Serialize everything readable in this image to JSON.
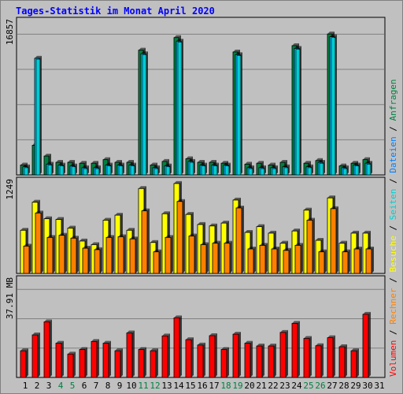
{
  "title": "Tages-Statistik im Monat April 2020",
  "colors": {
    "background": "#c0c0c0",
    "panel": "#c0c0c0",
    "grid": "#808080",
    "title": "#0000ff",
    "anfragen": "#008040",
    "dateien": "#00c0ff",
    "seiten": "#00d0d0",
    "besuche": "#ffff00",
    "rechner": "#ff8000",
    "volumen": "#ff0000",
    "day_normal": "#000000",
    "day_weekend": "#008040"
  },
  "side_label": [
    {
      "text": "Volumen",
      "color": "#ff0000"
    },
    {
      "text": "Rechner",
      "color": "#ff8000"
    },
    {
      "text": "Besuche",
      "color": "#ffff00"
    },
    {
      "text": "Seiten",
      "color": "#00d0d0"
    },
    {
      "text": "Dateien",
      "color": "#0080ff"
    },
    {
      "text": "Anfragen",
      "color": "#008040"
    }
  ],
  "separator": " / ",
  "chart_data": [
    {
      "type": "bar",
      "panel": "top",
      "y_max_label": "16857",
      "ylim": [
        0,
        16857
      ],
      "grid": true,
      "series": [
        {
          "name": "Anfragen",
          "color": "#008040",
          "values": [
            1100,
            3300,
            2100,
            1400,
            1400,
            1300,
            1300,
            1700,
            1400,
            1400,
            13900,
            1100,
            1500,
            15300,
            1800,
            1400,
            1400,
            1300,
            13700,
            1200,
            1300,
            1100,
            1400,
            14400,
            1300,
            1600,
            15700,
            1000,
            1300,
            1700
          ]
        },
        {
          "name": "Dateien",
          "color": "#00c0ff",
          "values": [
            900,
            13000,
            1200,
            1100,
            1000,
            800,
            800,
            1100,
            1100,
            1100,
            13500,
            800,
            1000,
            14900,
            1500,
            1100,
            1100,
            1100,
            13400,
            800,
            800,
            800,
            900,
            14100,
            900,
            1400,
            15400,
            800,
            1100,
            1300
          ]
        },
        {
          "name": "Seiten",
          "color": "#00d0d0",
          "values": [
            800,
            12900,
            1100,
            1000,
            900,
            700,
            700,
            1000,
            1000,
            1000,
            13400,
            700,
            900,
            14800,
            1400,
            1000,
            1000,
            1000,
            13300,
            700,
            700,
            700,
            800,
            14000,
            800,
            1300,
            15300,
            700,
            1000,
            1200
          ]
        }
      ]
    },
    {
      "type": "bar",
      "panel": "middle",
      "y_max_label": "1249",
      "ylim": [
        0,
        1249
      ],
      "grid": false,
      "series": [
        {
          "name": "Besuche",
          "color": "#ffff00",
          "values": [
            600,
            990,
            760,
            750,
            630,
            450,
            400,
            740,
            810,
            600,
            1180,
            430,
            830,
            1250,
            820,
            680,
            660,
            700,
            1020,
            570,
            650,
            560,
            420,
            590,
            880,
            460,
            1050,
            420,
            560,
            560
          ]
        },
        {
          "name": "Rechner",
          "color": "#ff8000",
          "values": [
            380,
            840,
            500,
            530,
            490,
            350,
            330,
            500,
            510,
            480,
            870,
            300,
            500,
            1000,
            520,
            400,
            420,
            420,
            910,
            340,
            390,
            340,
            320,
            390,
            740,
            300,
            900,
            300,
            340,
            340
          ]
        }
      ]
    },
    {
      "type": "bar",
      "panel": "bottom",
      "y_max_label": "37.91 MB",
      "ylim": [
        0,
        37.91
      ],
      "grid": true,
      "series": [
        {
          "name": "Volumen",
          "color": "#ff0000",
          "values": [
            10.6,
            16.9,
            22.1,
            13.6,
            9.3,
            11.1,
            14.3,
            13.6,
            10.6,
            17.7,
            11.1,
            10.6,
            16.5,
            23.7,
            15.0,
            12.9,
            16.6,
            11.1,
            17.2,
            13.6,
            12.5,
            12.5,
            17.9,
            21.5,
            15.5,
            12.6,
            15.8,
            12.2,
            10.6,
            25.1
          ]
        }
      ]
    }
  ],
  "days": [
    {
      "label": "1",
      "weekend": false
    },
    {
      "label": "2",
      "weekend": false
    },
    {
      "label": "3",
      "weekend": false
    },
    {
      "label": "4",
      "weekend": true
    },
    {
      "label": "5",
      "weekend": true
    },
    {
      "label": "6",
      "weekend": false
    },
    {
      "label": "7",
      "weekend": false
    },
    {
      "label": "8",
      "weekend": false
    },
    {
      "label": "9",
      "weekend": false
    },
    {
      "label": "10",
      "weekend": false
    },
    {
      "label": "11",
      "weekend": true
    },
    {
      "label": "12",
      "weekend": true
    },
    {
      "label": "13",
      "weekend": false
    },
    {
      "label": "14",
      "weekend": false
    },
    {
      "label": "15",
      "weekend": false
    },
    {
      "label": "16",
      "weekend": false
    },
    {
      "label": "17",
      "weekend": false
    },
    {
      "label": "18",
      "weekend": true
    },
    {
      "label": "19",
      "weekend": true
    },
    {
      "label": "20",
      "weekend": false
    },
    {
      "label": "21",
      "weekend": false
    },
    {
      "label": "22",
      "weekend": false
    },
    {
      "label": "23",
      "weekend": false
    },
    {
      "label": "24",
      "weekend": false
    },
    {
      "label": "25",
      "weekend": true
    },
    {
      "label": "26",
      "weekend": true
    },
    {
      "label": "27",
      "weekend": false
    },
    {
      "label": "28",
      "weekend": false
    },
    {
      "label": "29",
      "weekend": false
    },
    {
      "label": "30",
      "weekend": false
    },
    {
      "label": "31",
      "weekend": false
    }
  ]
}
